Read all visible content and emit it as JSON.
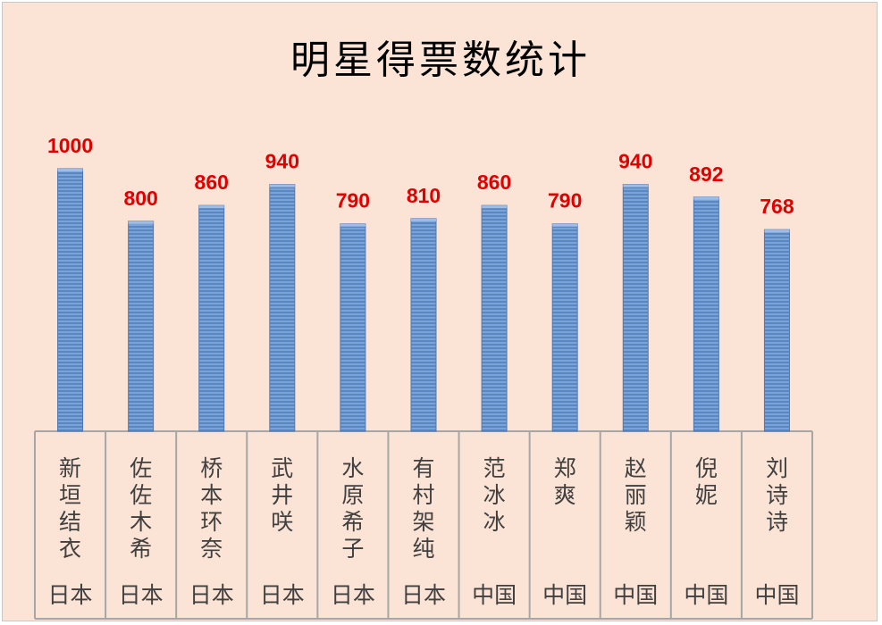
{
  "chart_data": {
    "type": "bar",
    "title": "明星得票数统计",
    "categories": [
      "新垣结衣",
      "佐佐木希",
      "桥本环奈",
      "武井咲",
      "水原希子",
      "有村架纯",
      "范冰冰",
      "郑爽",
      "赵丽颖",
      "倪妮",
      "刘诗诗"
    ],
    "groups": [
      "日本",
      "日本",
      "日本",
      "日本",
      "日本",
      "日本",
      "中国",
      "中国",
      "中国",
      "中国",
      "中国"
    ],
    "values": [
      1000,
      800,
      860,
      940,
      790,
      810,
      860,
      790,
      940,
      892,
      768
    ],
    "ylim": [
      0,
      1000
    ],
    "grid": false,
    "legend": "none",
    "colors": {
      "bar": "#6f9bd4",
      "bar_dark": "#4f79b5",
      "value_label": "#e00000",
      "background": "#fbe4d5",
      "axis": "#a6a6a6"
    }
  }
}
